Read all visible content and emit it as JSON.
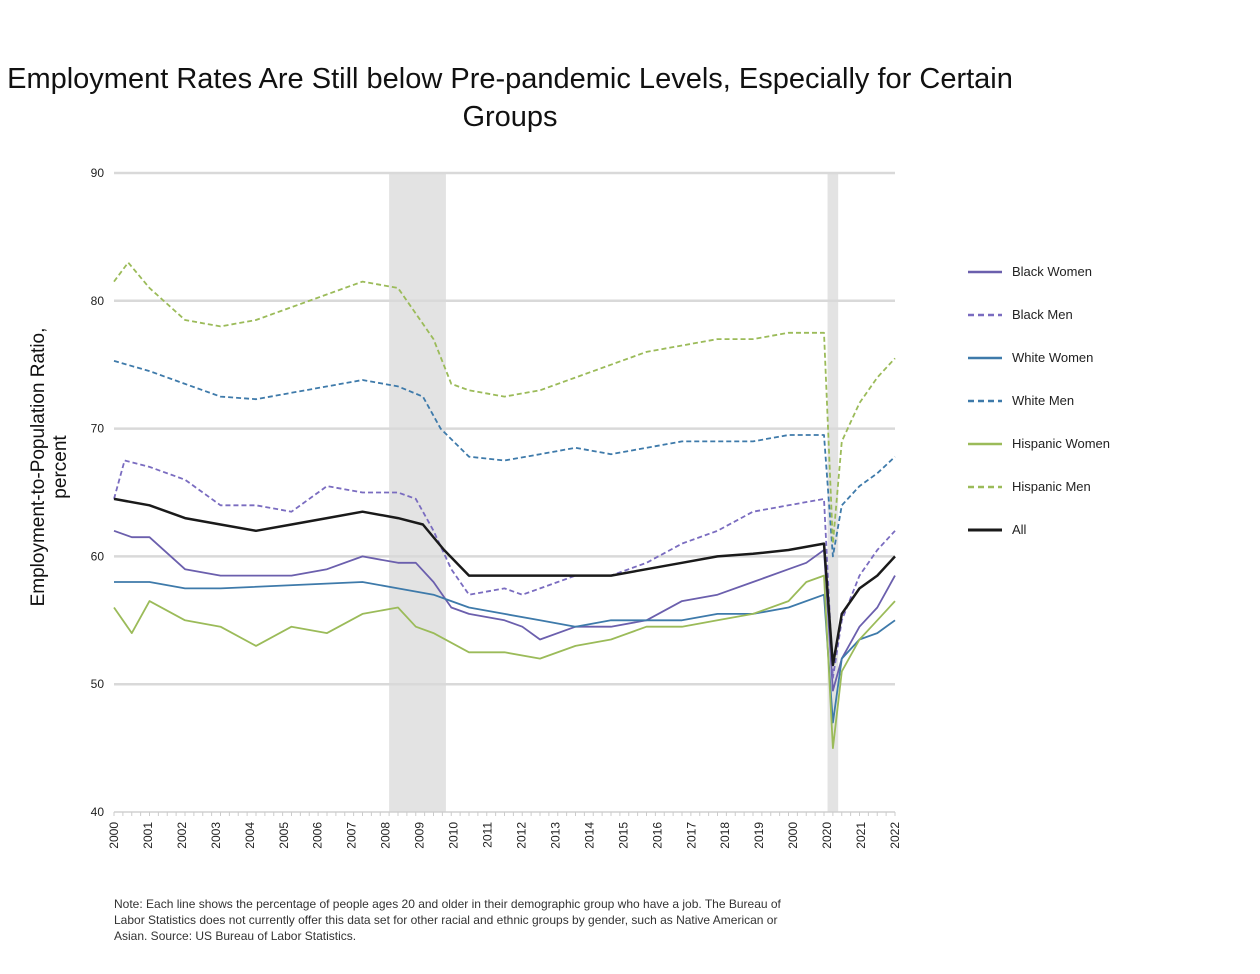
{
  "chart_data": {
    "type": "line",
    "title": "Employment Rates Are Still below Pre-pandemic Levels, Especially for Certain Groups",
    "xlabel": "",
    "ylabel": "Employment-to-Population Ratio, percent",
    "xlim": [
      2000,
      2022
    ],
    "ylim": [
      40,
      90
    ],
    "yticks": [
      40,
      50,
      60,
      70,
      80,
      90
    ],
    "xtick_labels": [
      "2000",
      "2001",
      "2002",
      "2003",
      "2004",
      "2005",
      "2006",
      "2007",
      "2008",
      "2009",
      "2010",
      "2011",
      "2012",
      "2013",
      "2014",
      "2015",
      "2016",
      "2017",
      "2018",
      "2019",
      "2000",
      "2020",
      "2021",
      "2022"
    ],
    "grid": "horizontal",
    "legend_position": "right",
    "shaded_periods": [
      [
        2007.75,
        2009.35
      ],
      [
        2020.1,
        2020.4
      ]
    ],
    "series": [
      {
        "name": "Black Women",
        "color": "#6b5fad",
        "dash": false,
        "x": [
          2000,
          2000.5,
          2001,
          2002,
          2003,
          2004,
          2005,
          2006,
          2007,
          2008,
          2008.5,
          2009,
          2009.5,
          2010,
          2011,
          2011.5,
          2012,
          2013,
          2014,
          2015,
          2016,
          2017,
          2018,
          2019,
          2019.5,
          2020,
          2020.25,
          2020.5,
          2021,
          2021.5,
          2022
        ],
        "y": [
          62,
          61.5,
          61.5,
          59,
          58.5,
          58.5,
          58.5,
          59,
          60,
          59.5,
          59.5,
          58,
          56,
          55.5,
          55,
          54.5,
          53.5,
          54.5,
          54.5,
          55,
          56.5,
          57,
          58,
          59,
          59.5,
          60.5,
          49.5,
          52,
          54.5,
          56,
          58.5
        ]
      },
      {
        "name": "Black Men",
        "color": "#7a6cc0",
        "dash": true,
        "x": [
          2000,
          2000.3,
          2001,
          2002,
          2002.5,
          2003,
          2004,
          2005,
          2006,
          2007,
          2008,
          2008.5,
          2009,
          2009.5,
          2010,
          2011,
          2011.5,
          2012,
          2012.5,
          2013,
          2014,
          2015,
          2016,
          2017,
          2018,
          2019,
          2020,
          2020.25,
          2020.5,
          2021,
          2021.5,
          2022
        ],
        "y": [
          64.5,
          67.5,
          67,
          66,
          65,
          64,
          64,
          63.5,
          65.5,
          65,
          65,
          64.5,
          62,
          59,
          57,
          57.5,
          57,
          57.5,
          58,
          58.5,
          58.5,
          59.5,
          61,
          62,
          63.5,
          64,
          64.5,
          50.5,
          55,
          58.5,
          60.5,
          62
        ]
      },
      {
        "name": "White Women",
        "color": "#3e7aaa",
        "dash": false,
        "x": [
          2000,
          2001,
          2002,
          2003,
          2007,
          2008,
          2009,
          2009.5,
          2010,
          2011,
          2012,
          2013,
          2014,
          2015,
          2016,
          2017,
          2018,
          2019,
          2020,
          2020.25,
          2020.5,
          2021,
          2021.5,
          2022
        ],
        "y": [
          58,
          58,
          57.5,
          57.5,
          58,
          57.5,
          57,
          56.5,
          56,
          55.5,
          55,
          54.5,
          55,
          55,
          55,
          55.5,
          55.5,
          56,
          57,
          47,
          52,
          53.5,
          54,
          55
        ]
      },
      {
        "name": "White Men",
        "color": "#3e7aaa",
        "dash": true,
        "x": [
          2000,
          2001,
          2002,
          2003,
          2004,
          2005,
          2006,
          2007,
          2008,
          2008.7,
          2009.2,
          2010,
          2011,
          2012,
          2013,
          2014,
          2015,
          2016,
          2017,
          2018,
          2019,
          2020,
          2020.25,
          2020.5,
          2021,
          2021.5,
          2022
        ],
        "y": [
          75.3,
          74.5,
          73.5,
          72.5,
          72.3,
          72.8,
          73.3,
          73.8,
          73.3,
          72.5,
          70,
          67.8,
          67.5,
          68,
          68.5,
          68,
          68.5,
          69,
          69,
          69,
          69.5,
          69.5,
          60,
          64,
          65.5,
          66.5,
          67.8
        ]
      },
      {
        "name": "Hispanic Women",
        "color": "#9bbb59",
        "dash": false,
        "x": [
          2000,
          2000.5,
          2001,
          2002,
          2003,
          2004,
          2005,
          2006,
          2007,
          2008,
          2008.5,
          2009,
          2010,
          2011,
          2012,
          2013,
          2014,
          2015,
          2016,
          2017,
          2018,
          2019,
          2019.5,
          2020,
          2020.25,
          2020.5,
          2021,
          2021.5,
          2022
        ],
        "y": [
          56,
          54,
          56.5,
          55,
          54.5,
          53,
          54.5,
          54,
          55.5,
          56,
          54.5,
          54,
          52.5,
          52.5,
          52,
          53,
          53.5,
          54.5,
          54.5,
          55,
          55.5,
          56.5,
          58,
          58.5,
          45,
          51,
          53.5,
          55,
          56.5
        ]
      },
      {
        "name": "Hispanic Men",
        "color": "#9bbb59",
        "dash": true,
        "x": [
          2000,
          2000.4,
          2001,
          2002,
          2003,
          2004,
          2005,
          2006,
          2007,
          2008,
          2008.5,
          2009,
          2009.5,
          2010,
          2011,
          2012,
          2013,
          2014,
          2015,
          2016,
          2017,
          2018,
          2019,
          2020,
          2020.25,
          2020.5,
          2021,
          2021.5,
          2022
        ],
        "y": [
          81.5,
          83,
          81,
          78.5,
          78,
          78.5,
          79.5,
          80.5,
          81.5,
          81,
          79,
          77,
          73.5,
          73,
          72.5,
          73,
          74,
          75,
          76,
          76.5,
          77,
          77,
          77.5,
          77.5,
          61,
          69,
          72,
          74,
          75.5
        ]
      },
      {
        "name": "All",
        "color": "#1a1a1a",
        "dash": false,
        "x": [
          2000,
          2001,
          2002,
          2003,
          2004,
          2005,
          2006,
          2007,
          2008,
          2008.7,
          2009.3,
          2010,
          2011,
          2013,
          2014,
          2015,
          2016,
          2017,
          2018,
          2019,
          2020,
          2020.25,
          2020.5,
          2021,
          2021.5,
          2022
        ],
        "y": [
          64.5,
          64,
          63,
          62.5,
          62,
          62.5,
          63,
          63.5,
          63,
          62.5,
          60.5,
          58.5,
          58.5,
          58.5,
          58.5,
          59,
          59.5,
          60,
          60.2,
          60.5,
          61,
          51.5,
          55.5,
          57.5,
          58.5,
          60
        ]
      }
    ],
    "note": "Note: Each line shows the percentage of people ages 20 and older in their demographic group who have a job. The Bureau of Labor Statistics does not currently offer this data set for other racial and ethnic groups by gender, such as Native American or Asian. Source: US Bureau of Labor Statistics."
  }
}
